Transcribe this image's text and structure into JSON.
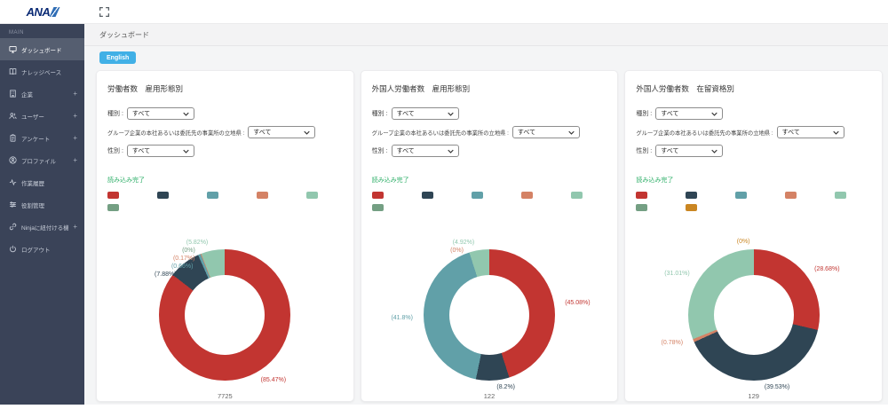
{
  "header": {
    "logo_text": "ANA"
  },
  "sidebar": {
    "section_label": "MAIN",
    "expand_glyph": "+",
    "items": [
      {
        "label": "ダッシュボード",
        "icon": "dashboard",
        "active": true,
        "expandable": false
      },
      {
        "label": "ナレッジベース",
        "icon": "knowledge-base",
        "active": false,
        "expandable": false
      },
      {
        "label": "企業",
        "icon": "company",
        "active": false,
        "expandable": true
      },
      {
        "label": "ユーザー",
        "icon": "users",
        "active": false,
        "expandable": true
      },
      {
        "label": "アンケート",
        "icon": "survey",
        "active": false,
        "expandable": true
      },
      {
        "label": "プロファイル",
        "icon": "profile",
        "active": false,
        "expandable": true
      },
      {
        "label": "作業履歴",
        "icon": "work-history",
        "active": false,
        "expandable": false
      },
      {
        "label": "役割管理",
        "icon": "role-management",
        "active": false,
        "expandable": false
      },
      {
        "label": "Ninjaに紐付ける機能",
        "icon": "ninja-link",
        "active": false,
        "expandable": true
      },
      {
        "label": "ログアウト",
        "icon": "logout",
        "active": false,
        "expandable": false
      }
    ]
  },
  "breadcrumb": "ダッシュボード",
  "language_button": "English",
  "loaded_label": "読み込み完了",
  "filters": {
    "type_label": "種別 :",
    "location_label": "グループ企業の本社あるいは委託先の事業所の立地県 :",
    "gender_label": "性別 :",
    "all_value": "すべて"
  },
  "charts": [
    {
      "title": "労働者数　雇用形態別",
      "total": "7725",
      "legend_colors": [
        "#c23531",
        "#2f4554",
        "#61a0a8",
        "#d48265",
        "#91c7ae",
        "#749f83"
      ],
      "chart_data": {
        "type": "pie",
        "donut": true,
        "total_label": "7725",
        "slices": [
          {
            "color": "#c23531",
            "value": 85.47,
            "label": "(85.47%)"
          },
          {
            "color": "#2f4554",
            "value": 7.88,
            "label": "(7.88%)"
          },
          {
            "color": "#61a0a8",
            "value": 0.66,
            "label": "(0.66%)"
          },
          {
            "color": "#d48265",
            "value": 0.17,
            "label": "(0.17%)"
          },
          {
            "color": "#749f83",
            "value": 0,
            "label": "(0%)"
          },
          {
            "color": "#91c7ae",
            "value": 5.82,
            "label": "(5.82%)"
          }
        ]
      }
    },
    {
      "title": "外国人労働者数　雇用形態別",
      "total": "122",
      "legend_colors": [
        "#c23531",
        "#2f4554",
        "#61a0a8",
        "#d48265",
        "#91c7ae",
        "#749f83"
      ],
      "chart_data": {
        "type": "pie",
        "donut": true,
        "total_label": "122",
        "slices": [
          {
            "color": "#c23531",
            "value": 45.08,
            "label": "(45.08%)"
          },
          {
            "color": "#2f4554",
            "value": 8.2,
            "label": "(8.2%)"
          },
          {
            "color": "#61a0a8",
            "value": 41.8,
            "label": "(41.8%)"
          },
          {
            "color": "#d48265",
            "value": 0,
            "label": "(0%)"
          },
          {
            "color": "#91c7ae",
            "value": 4.92,
            "label": "(4.92%)"
          }
        ]
      }
    },
    {
      "title": "外国人労働者数　在留資格別",
      "total": "129",
      "legend_colors": [
        "#c23531",
        "#2f4554",
        "#61a0a8",
        "#d48265",
        "#91c7ae",
        "#749f83",
        "#ca8622"
      ],
      "chart_data": {
        "type": "pie",
        "donut": true,
        "total_label": "129",
        "slices": [
          {
            "color": "#c23531",
            "value": 28.68,
            "label": "(28.68%)"
          },
          {
            "color": "#2f4554",
            "value": 39.53,
            "label": "(39.53%)"
          },
          {
            "color": "#d48265",
            "value": 0.78,
            "label": "(0.78%)"
          },
          {
            "color": "#91c7ae",
            "value": 31.01,
            "label": "(31.01%)"
          },
          {
            "color": "#ca8622",
            "value": 0,
            "label": "(0%)"
          }
        ]
      }
    }
  ]
}
